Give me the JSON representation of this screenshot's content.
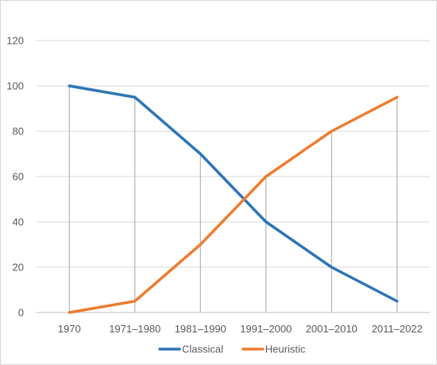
{
  "chart_data": {
    "type": "line",
    "title": "",
    "xlabel": "",
    "ylabel": "",
    "categories": [
      "1970",
      "1971–1980",
      "1981–1990",
      "1991–2000",
      "2001–2010",
      "2011–2022"
    ],
    "ylim": [
      0,
      120
    ],
    "yticks": [
      0,
      20,
      40,
      60,
      80,
      100,
      120
    ],
    "grid": "horizontal gridlines; vertical drop lines at each category",
    "legend_position": "bottom",
    "series": [
      {
        "name": "Classical",
        "color": "#2e75b6",
        "values": [
          100,
          95,
          70,
          40,
          20,
          5
        ]
      },
      {
        "name": "Heuristic",
        "color": "#ed7d31",
        "values": [
          0,
          5,
          30,
          60,
          80,
          95
        ]
      }
    ]
  }
}
